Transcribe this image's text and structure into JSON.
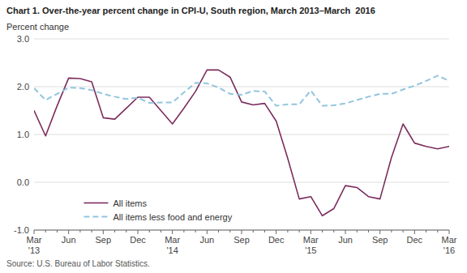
{
  "chart_data": {
    "type": "line",
    "title": "Chart 1. Over-the-year percent change in CPI-U, South region, March 2013–March  2016",
    "y_label": "Percent change",
    "source": "Source: U.S. Bureau of Labor Statistics.",
    "categories": [
      "Mar\n'13",
      null,
      null,
      "Jun",
      null,
      null,
      "Sep",
      null,
      null,
      "Dec",
      null,
      null,
      "Mar\n'14",
      null,
      null,
      "Jun",
      null,
      null,
      "Sep",
      null,
      null,
      "Dec",
      null,
      null,
      "Mar\n'15",
      null,
      null,
      "Jun",
      null,
      null,
      "Sep",
      null,
      null,
      "Dec",
      null,
      null,
      "Mar\n'16"
    ],
    "series": [
      {
        "name": "All items",
        "color": "#7B2D5E",
        "line_style": "solid",
        "values": [
          1.5,
          0.97,
          1.6,
          2.18,
          2.17,
          2.1,
          1.35,
          1.32,
          1.55,
          1.78,
          1.78,
          1.5,
          1.22,
          1.55,
          1.9,
          2.35,
          2.35,
          2.2,
          1.68,
          1.62,
          1.65,
          1.28,
          0.5,
          -0.35,
          -0.3,
          -0.7,
          -0.55,
          -0.07,
          -0.11,
          -0.3,
          -0.35,
          0.52,
          1.22,
          0.82,
          0.75,
          0.7,
          0.75
        ]
      },
      {
        "name": "All items less food and energy",
        "color": "#92C5DE",
        "line_style": "dashed",
        "values": [
          1.97,
          1.72,
          1.85,
          1.98,
          1.97,
          1.93,
          1.85,
          1.79,
          1.74,
          1.77,
          1.66,
          1.67,
          1.67,
          1.88,
          2.08,
          2.07,
          1.98,
          1.85,
          1.83,
          1.91,
          1.9,
          1.6,
          1.63,
          1.63,
          1.92,
          1.6,
          1.61,
          1.65,
          1.72,
          1.79,
          1.85,
          1.85,
          1.94,
          2.02,
          2.12,
          2.23,
          2.12
        ]
      }
    ],
    "ylim": [
      -1.0,
      3.0
    ],
    "yticks": [
      {
        "value": -1.0,
        "label": "-1.0"
      },
      {
        "value": 0.0,
        "label": "0.0"
      },
      {
        "value": 1.0,
        "label": "1.0"
      },
      {
        "value": 2.0,
        "label": "2.0"
      },
      {
        "value": 3.0,
        "label": "3.0"
      }
    ],
    "grid": true,
    "legend": "lower left"
  }
}
